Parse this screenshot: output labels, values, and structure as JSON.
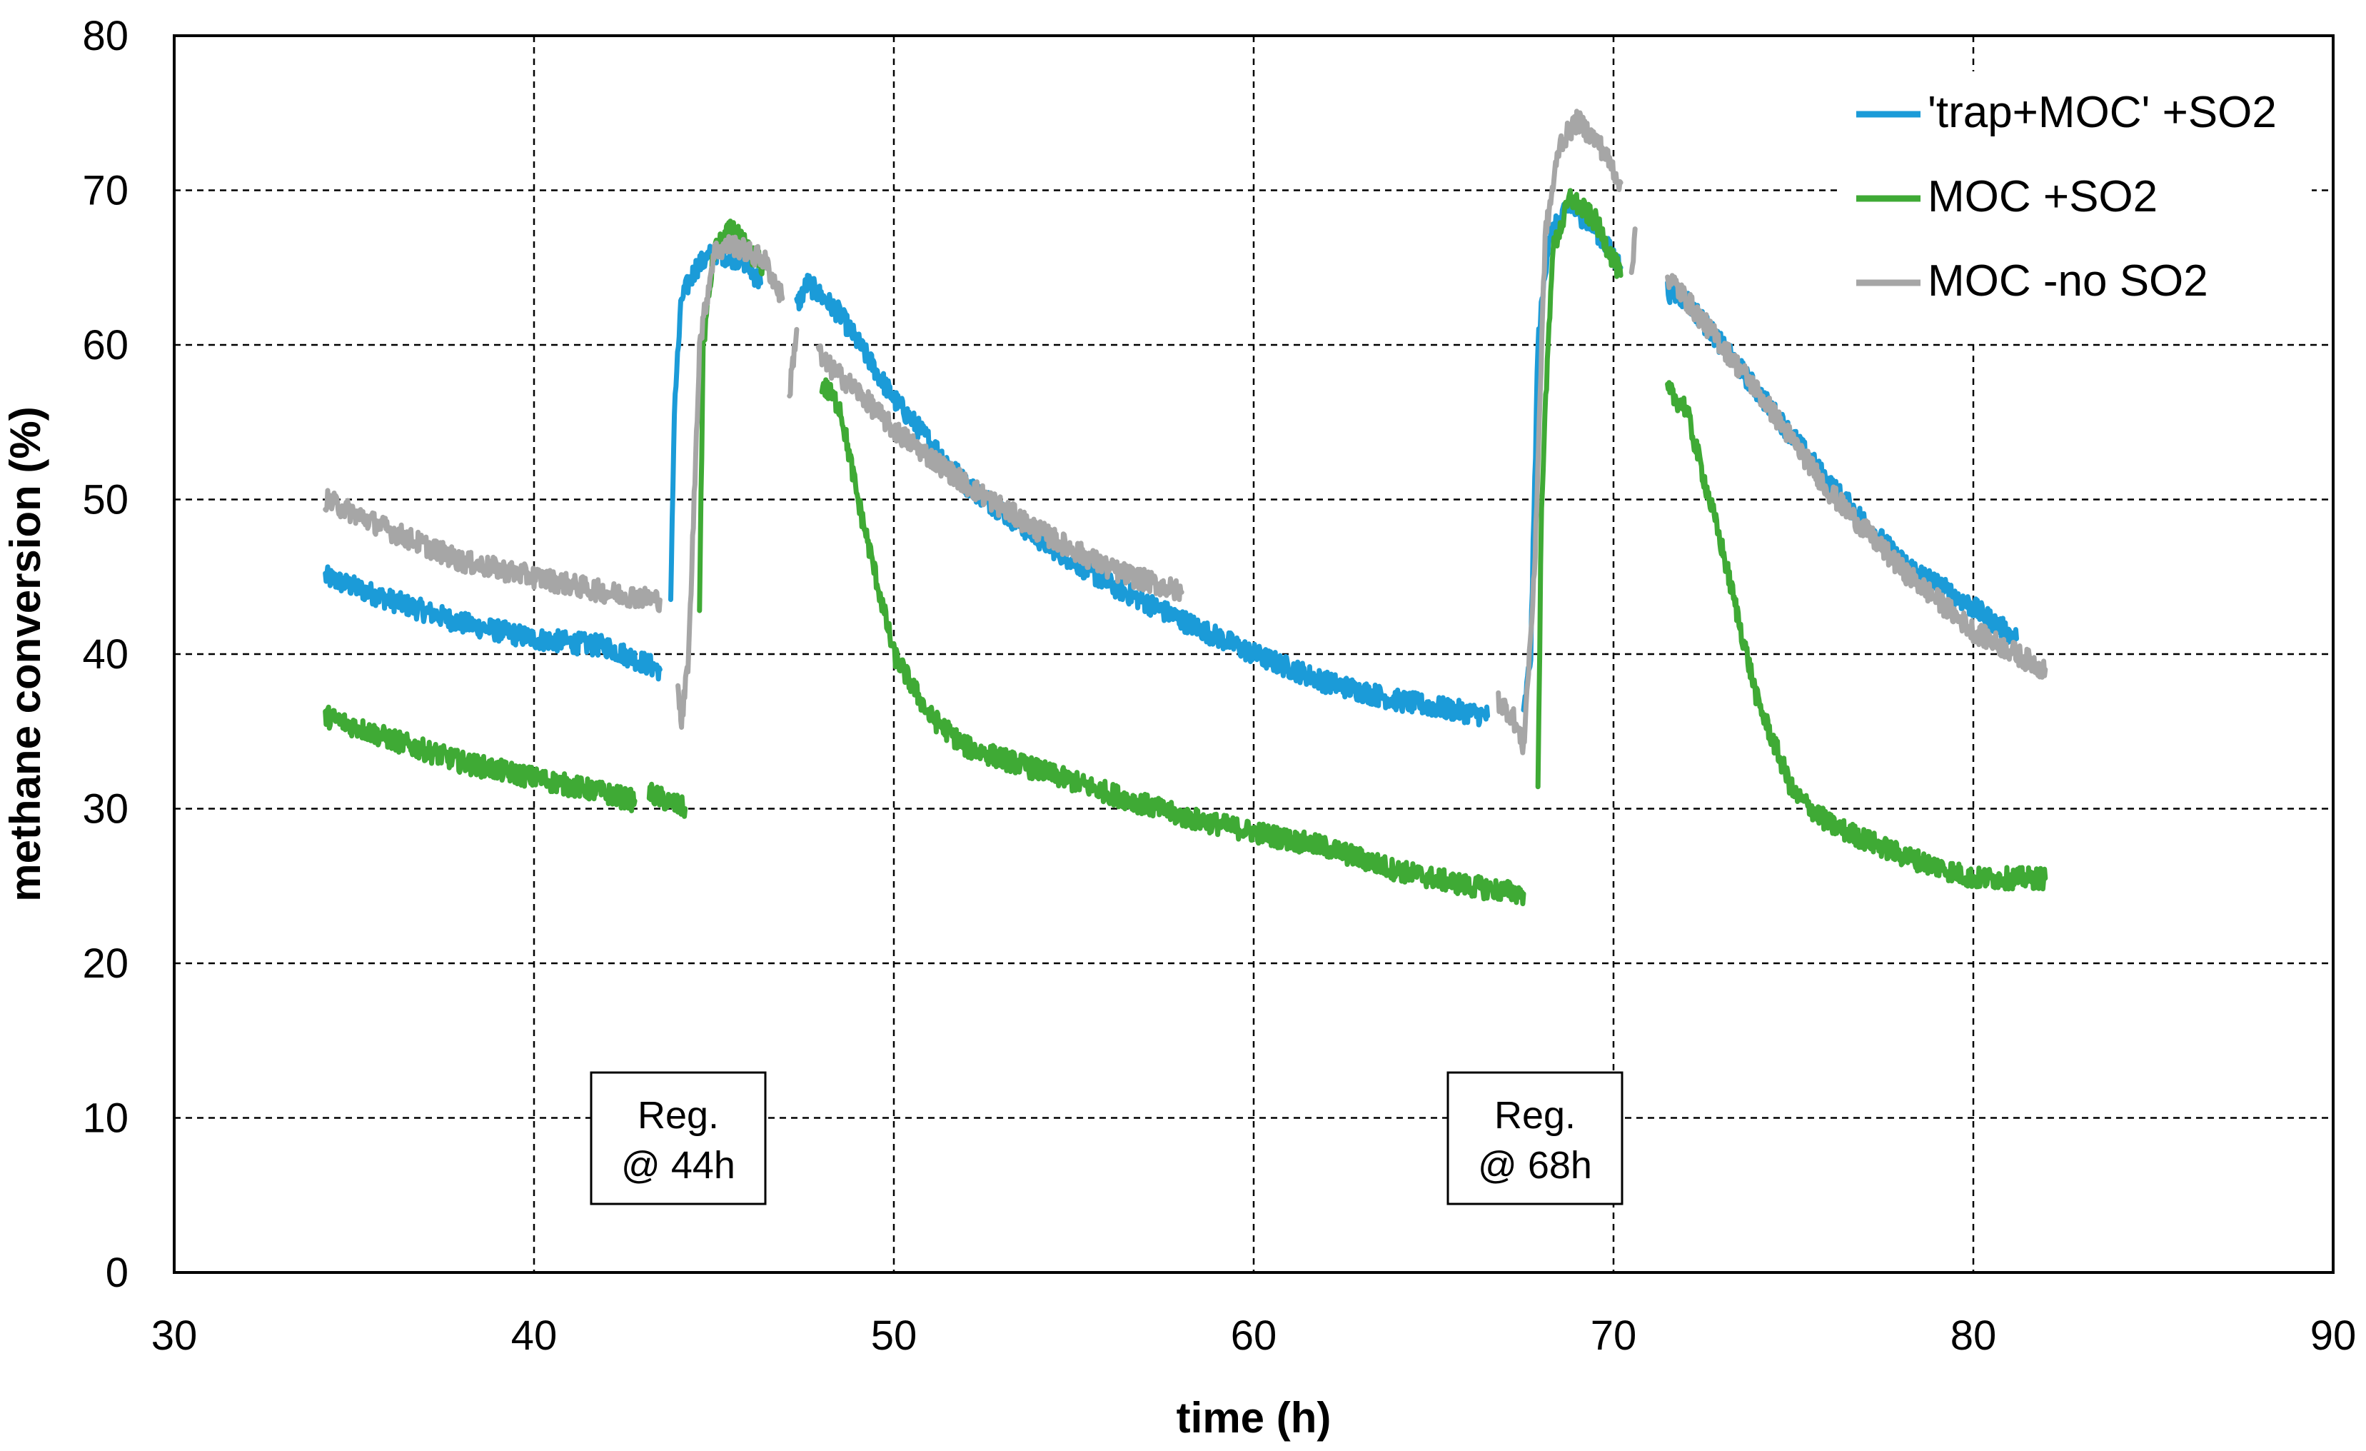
{
  "chart_data": {
    "type": "line",
    "title": "",
    "xlabel": "time (h)",
    "ylabel": "methane conversion (%)",
    "xlim": [
      30,
      90
    ],
    "ylim": [
      0,
      80
    ],
    "xticks": [
      30,
      40,
      50,
      60,
      70,
      80,
      90
    ],
    "yticks": [
      0,
      10,
      20,
      30,
      40,
      50,
      60,
      70,
      80
    ],
    "grid": true,
    "legend_position": "top-right",
    "series": [
      {
        "name": "'trap+MOC' +SO2",
        "color": "#1B9BD8",
        "segments": [
          [
            [
              34.2,
              45.0
            ],
            [
              36,
              43.5
            ],
            [
              38,
              42.0
            ],
            [
              40,
              41.0
            ],
            [
              42,
              40.5
            ],
            [
              43.5,
              39.0
            ]
          ],
          [
            [
              43.8,
              43.0
            ],
            [
              43.9,
              56.0
            ],
            [
              44.1,
              63.0
            ],
            [
              44.5,
              65.0
            ],
            [
              45,
              66.0
            ],
            [
              45.8,
              65.5
            ],
            [
              46.3,
              64.0
            ]
          ],
          [
            [
              47.3,
              62.5
            ],
            [
              47.6,
              64.0
            ],
            [
              48.5,
              62.0
            ],
            [
              50,
              56.5
            ],
            [
              52,
              51.0
            ],
            [
              54,
              47.5
            ],
            [
              56,
              44.5
            ],
            [
              58,
              42.2
            ],
            [
              60,
              40.0
            ],
            [
              62,
              38.2
            ],
            [
              64,
              37.0
            ],
            [
              66.5,
              36.0
            ]
          ],
          [
            [
              67.5,
              36.0
            ],
            [
              67.7,
              40.0
            ],
            [
              67.9,
              60.0
            ],
            [
              68.2,
              67.0
            ],
            [
              68.8,
              69.0
            ],
            [
              69.5,
              67.5
            ],
            [
              70.2,
              65.0
            ]
          ],
          [
            [
              71.5,
              63.5
            ],
            [
              72,
              63.0
            ],
            [
              74,
              57.0
            ],
            [
              76,
              51.0
            ],
            [
              78,
              46.0
            ],
            [
              80,
              43.0
            ],
            [
              81.2,
              41.0
            ]
          ]
        ]
      },
      {
        "name": "MOC +SO2",
        "color": "#3FAA35",
        "segments": [
          [
            [
              34.2,
              36.0
            ],
            [
              36,
              34.5
            ],
            [
              38,
              33.0
            ],
            [
              40,
              32.0
            ],
            [
              42,
              31.0
            ],
            [
              42.8,
              30.5
            ]
          ],
          [
            [
              43.2,
              31.0
            ],
            [
              44.2,
              30.0
            ]
          ],
          [
            [
              44.6,
              43.0
            ],
            [
              44.7,
              60.0
            ],
            [
              45,
              66.0
            ],
            [
              45.5,
              67.5
            ],
            [
              46,
              66.0
            ],
            [
              46.4,
              65.0
            ]
          ],
          [
            [
              48,
              57.5
            ],
            [
              48.5,
              56.0
            ],
            [
              49,
              50.0
            ],
            [
              50,
              40.0
            ],
            [
              51,
              36.0
            ],
            [
              52,
              34.0
            ],
            [
              54,
              32.5
            ],
            [
              56,
              31.0
            ],
            [
              58,
              29.5
            ],
            [
              60,
              28.5
            ],
            [
              62,
              27.5
            ],
            [
              64,
              26.0
            ],
            [
              66,
              25.0
            ],
            [
              67.5,
              24.5
            ]
          ],
          [
            [
              67.9,
              31.0
            ],
            [
              68.0,
              50.0
            ],
            [
              68.3,
              66.0
            ],
            [
              68.8,
              69.5
            ],
            [
              69.5,
              68.0
            ],
            [
              70.2,
              64.5
            ]
          ],
          [
            [
              71.5,
              57.0
            ],
            [
              72,
              56.0
            ],
            [
              73,
              47.0
            ],
            [
              74,
              37.0
            ],
            [
              75,
              31.0
            ],
            [
              76,
              29.0
            ],
            [
              78,
              27.0
            ],
            [
              80,
              25.5
            ],
            [
              82,
              25.5
            ]
          ]
        ]
      },
      {
        "name": "MOC -no SO2",
        "color": "#A6A6A6",
        "segments": [
          [
            [
              34.2,
              50.0
            ],
            [
              36,
              48.0
            ],
            [
              38,
              46.0
            ],
            [
              40,
              45.0
            ],
            [
              42,
              44.0
            ],
            [
              43.5,
              43.5
            ]
          ],
          [
            [
              44.0,
              38.0
            ],
            [
              44.1,
              35.5
            ],
            [
              44.3,
              40.0
            ],
            [
              44.6,
              60.0
            ],
            [
              45,
              66.0
            ],
            [
              45.5,
              66.5
            ],
            [
              46.4,
              65.5
            ],
            [
              46.9,
              63.0
            ]
          ],
          [
            [
              47.1,
              57.0
            ],
            [
              47.3,
              61.0
            ]
          ],
          [
            [
              47.9,
              60.0
            ],
            [
              48,
              59.0
            ],
            [
              49,
              57.0
            ],
            [
              50,
              54.5
            ],
            [
              52,
              51.0
            ],
            [
              54,
              48.0
            ],
            [
              56,
              45.5
            ],
            [
              58,
              44.0
            ]
          ],
          [
            [
              66.8,
              37.0
            ],
            [
              67.2,
              36.0
            ],
            [
              67.5,
              34.0
            ],
            [
              67.8,
              45.0
            ],
            [
              68.1,
              67.0
            ],
            [
              68.5,
              73.0
            ],
            [
              69,
              74.5
            ],
            [
              69.6,
              73.0
            ],
            [
              70.2,
              70.5
            ]
          ],
          [
            [
              70.5,
              64.0
            ],
            [
              70.6,
              67.5
            ]
          ],
          [
            [
              71.5,
              64.5
            ],
            [
              72,
              63.0
            ],
            [
              74,
              57.0
            ],
            [
              76,
              50.5
            ],
            [
              78,
              45.5
            ],
            [
              80,
              41.5
            ],
            [
              82,
              39.0
            ]
          ]
        ]
      }
    ],
    "annotations": [
      {
        "line1": "Reg.",
        "line2": "@ 44h",
        "at_x": 44
      },
      {
        "line1": "Reg.",
        "line2": "@ 68h",
        "at_x": 68
      }
    ]
  }
}
